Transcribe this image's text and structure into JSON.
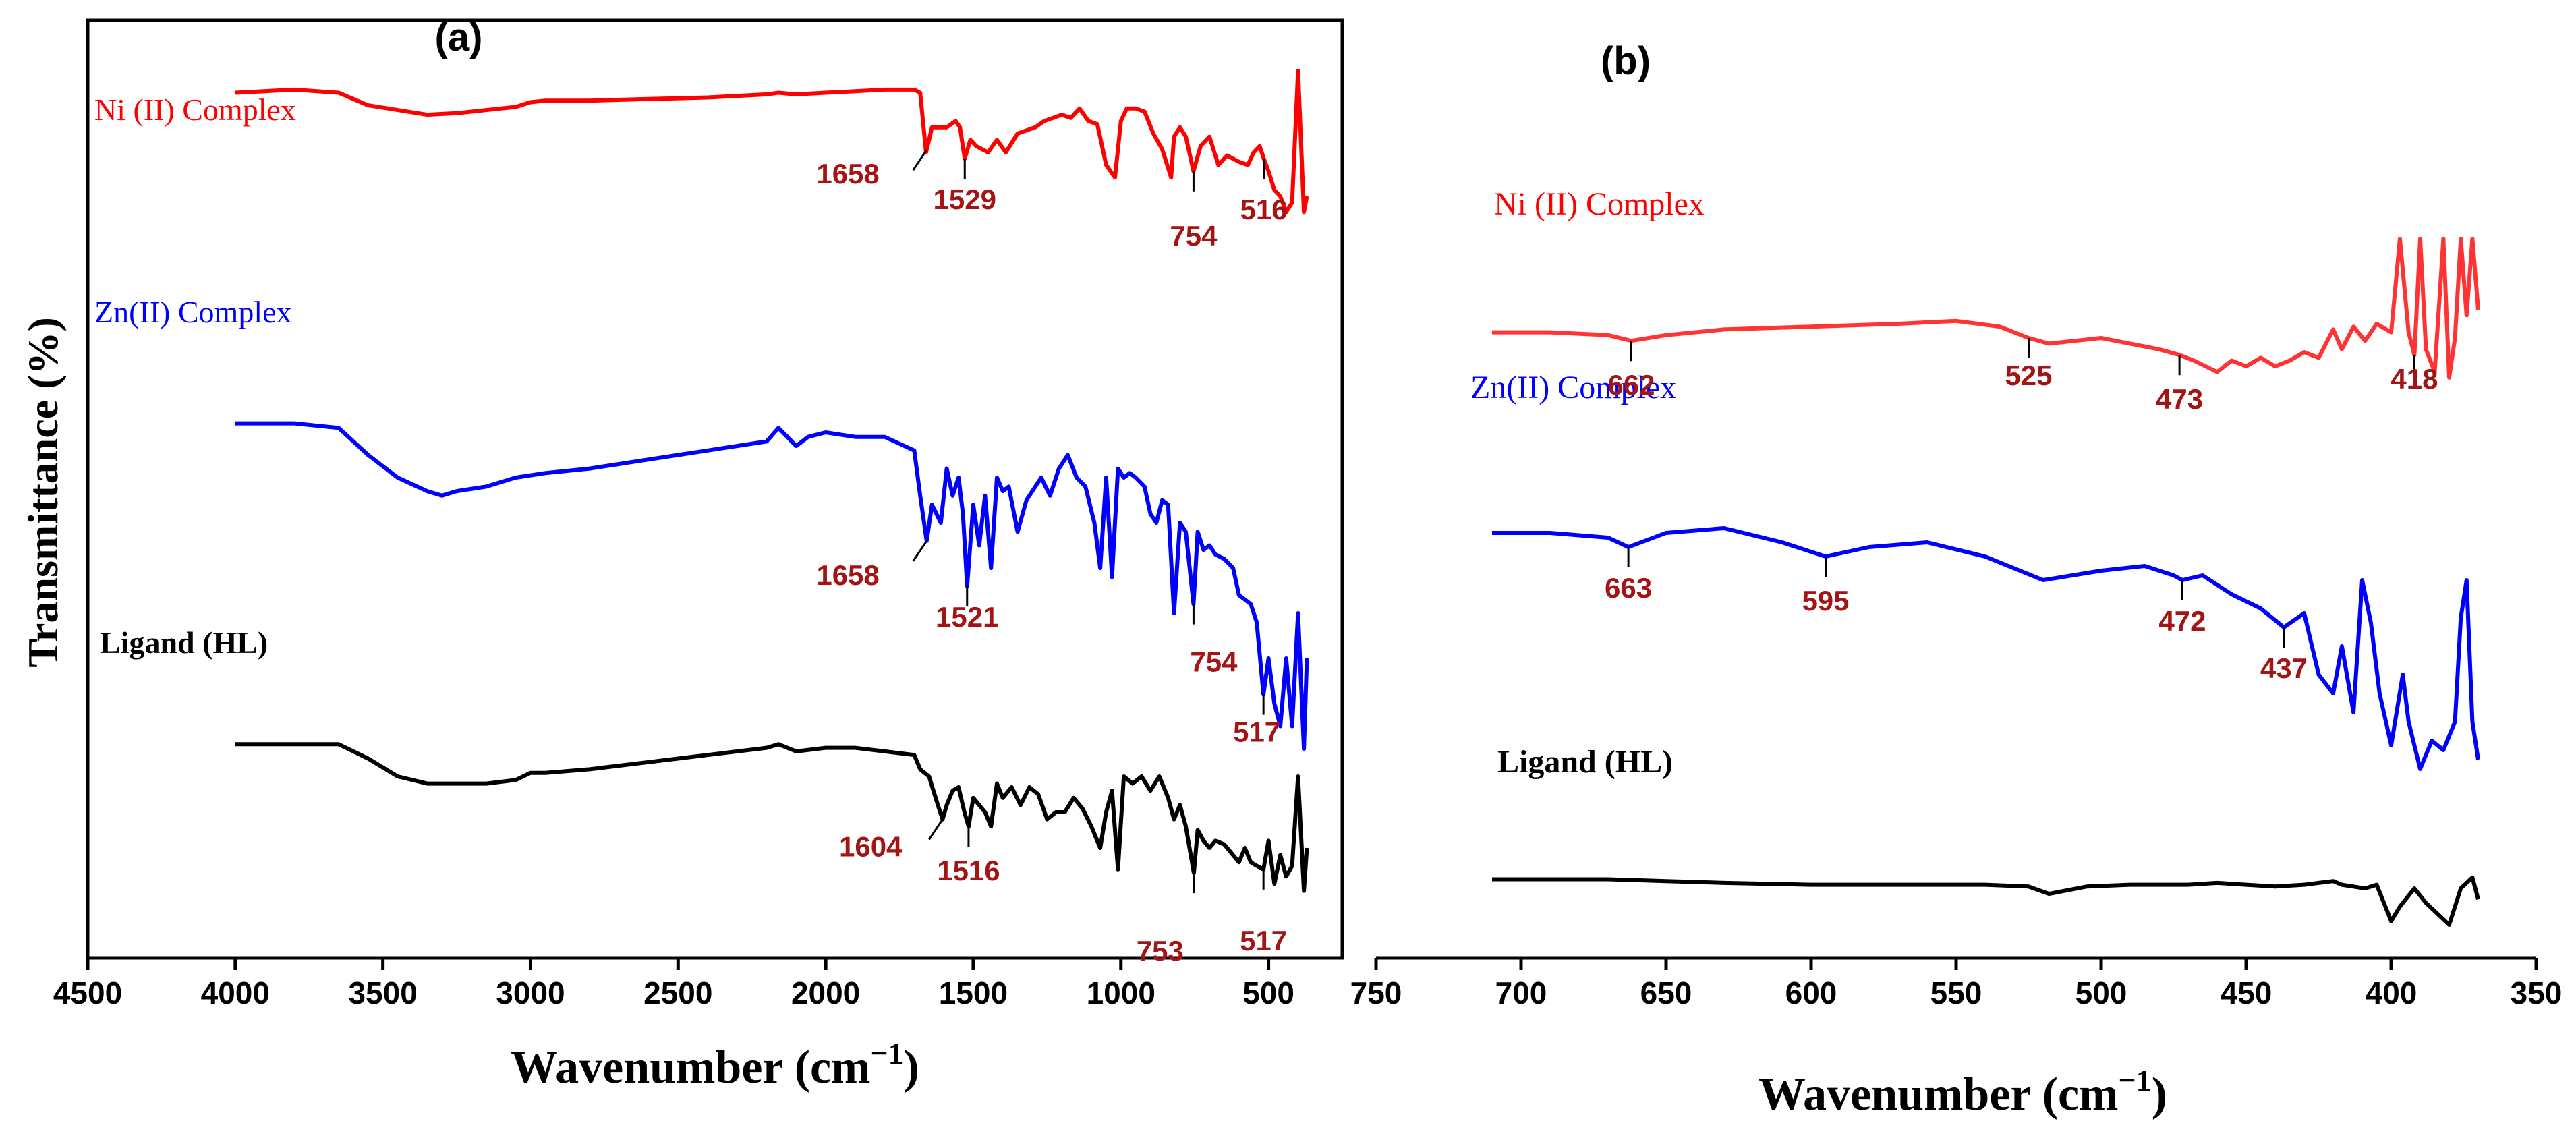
{
  "panels": [
    {
      "id": "a",
      "panel_label": "(a)",
      "xlabel_text": "Wavenumber (cm",
      "xlabel_sup": "−1",
      "xlabel_close": ")",
      "ylabel": "Transmittance (%)",
      "x_ticks": [
        4500,
        4000,
        3500,
        3000,
        2500,
        2000,
        1500,
        1000,
        500
      ],
      "xlim": [
        4500,
        250
      ],
      "series": [
        {
          "name": "Ni (II) Complex",
          "color": "#ff0000",
          "label_color": "#ff0000",
          "x": [
            4000,
            3800,
            3650,
            3550,
            3450,
            3350,
            3250,
            3150,
            3050,
            3000,
            2950,
            2800,
            2600,
            2400,
            2200,
            2160,
            2100,
            2000,
            1900,
            1800,
            1700,
            1680,
            1660,
            1640,
            1610,
            1590,
            1560,
            1545,
            1529,
            1510,
            1490,
            1470,
            1450,
            1420,
            1390,
            1350,
            1320,
            1290,
            1260,
            1230,
            1200,
            1170,
            1140,
            1110,
            1080,
            1050,
            1020,
            1000,
            980,
            950,
            920,
            890,
            860,
            830,
            820,
            800,
            780,
            754,
            730,
            700,
            670,
            640,
            600,
            570,
            550,
            530,
            516,
            500,
            480,
            460,
            440,
            420,
            400,
            380,
            370
          ],
          "y": [
            0.93,
            0.94,
            0.93,
            0.89,
            0.875,
            0.86,
            0.865,
            0.875,
            0.885,
            0.9,
            0.905,
            0.905,
            0.91,
            0.915,
            0.925,
            0.93,
            0.925,
            0.93,
            0.935,
            0.94,
            0.94,
            0.93,
            0.74,
            0.82,
            0.82,
            0.82,
            0.84,
            0.82,
            0.72,
            0.78,
            0.76,
            0.75,
            0.74,
            0.78,
            0.74,
            0.8,
            0.81,
            0.82,
            0.84,
            0.85,
            0.86,
            0.85,
            0.88,
            0.84,
            0.83,
            0.7,
            0.66,
            0.84,
            0.88,
            0.88,
            0.87,
            0.8,
            0.75,
            0.66,
            0.79,
            0.82,
            0.79,
            0.68,
            0.76,
            0.79,
            0.7,
            0.73,
            0.71,
            0.7,
            0.74,
            0.76,
            0.72,
            0.68,
            0.62,
            0.6,
            0.55,
            0.58,
            1.0,
            0.55,
            0.6
          ]
        },
        {
          "name": "Zn(II) Complex",
          "color": "#0000ff",
          "label_color": "#0000ff",
          "x": [
            4000,
            3800,
            3650,
            3550,
            3450,
            3350,
            3300,
            3250,
            3150,
            3050,
            2950,
            2800,
            2600,
            2400,
            2200,
            2160,
            2100,
            2060,
            2000,
            1900,
            1800,
            1700,
            1680,
            1658,
            1640,
            1610,
            1590,
            1570,
            1550,
            1535,
            1521,
            1500,
            1480,
            1460,
            1440,
            1420,
            1400,
            1380,
            1350,
            1320,
            1300,
            1270,
            1240,
            1210,
            1180,
            1150,
            1120,
            1090,
            1070,
            1050,
            1030,
            1010,
            990,
            970,
            950,
            920,
            900,
            880,
            860,
            840,
            820,
            800,
            780,
            754,
            740,
            720,
            700,
            680,
            650,
            620,
            600,
            580,
            560,
            540,
            517,
            500,
            480,
            460,
            440,
            420,
            400,
            380,
            370
          ],
          "y": [
            0.72,
            0.72,
            0.71,
            0.65,
            0.6,
            0.57,
            0.56,
            0.57,
            0.58,
            0.6,
            0.61,
            0.62,
            0.64,
            0.66,
            0.68,
            0.71,
            0.67,
            0.69,
            0.7,
            0.69,
            0.69,
            0.66,
            0.56,
            0.46,
            0.54,
            0.5,
            0.62,
            0.56,
            0.6,
            0.52,
            0.36,
            0.54,
            0.45,
            0.56,
            0.4,
            0.6,
            0.57,
            0.58,
            0.48,
            0.55,
            0.57,
            0.6,
            0.56,
            0.62,
            0.65,
            0.6,
            0.58,
            0.5,
            0.4,
            0.6,
            0.38,
            0.62,
            0.6,
            0.61,
            0.6,
            0.58,
            0.52,
            0.5,
            0.55,
            0.54,
            0.3,
            0.5,
            0.48,
            0.32,
            0.48,
            0.44,
            0.45,
            0.43,
            0.42,
            0.4,
            0.34,
            0.33,
            0.32,
            0.28,
            0.12,
            0.2,
            0.1,
            0.05,
            0.2,
            0.05,
            0.3,
            0.0,
            0.2
          ]
        },
        {
          "name": "Ligand (HL)",
          "color": "#000000",
          "label_color": "#000000",
          "x": [
            4000,
            3800,
            3650,
            3550,
            3450,
            3350,
            3250,
            3150,
            3050,
            3000,
            2950,
            2800,
            2600,
            2400,
            2200,
            2160,
            2100,
            2000,
            1900,
            1800,
            1700,
            1680,
            1650,
            1620,
            1604,
            1590,
            1570,
            1550,
            1530,
            1516,
            1500,
            1480,
            1460,
            1440,
            1420,
            1400,
            1370,
            1340,
            1310,
            1280,
            1250,
            1220,
            1190,
            1160,
            1130,
            1100,
            1070,
            1050,
            1030,
            1010,
            990,
            960,
            930,
            900,
            870,
            840,
            820,
            800,
            780,
            753,
            740,
            720,
            700,
            680,
            650,
            620,
            600,
            580,
            560,
            540,
            517,
            500,
            480,
            460,
            440,
            420,
            400,
            380,
            370
          ],
          "y": [
            0.39,
            0.39,
            0.39,
            0.35,
            0.3,
            0.28,
            0.28,
            0.28,
            0.29,
            0.31,
            0.31,
            0.32,
            0.34,
            0.36,
            0.38,
            0.39,
            0.37,
            0.38,
            0.38,
            0.37,
            0.36,
            0.32,
            0.3,
            0.22,
            0.18,
            0.22,
            0.26,
            0.27,
            0.2,
            0.16,
            0.24,
            0.22,
            0.2,
            0.16,
            0.28,
            0.24,
            0.27,
            0.22,
            0.27,
            0.25,
            0.18,
            0.2,
            0.2,
            0.24,
            0.21,
            0.16,
            0.1,
            0.2,
            0.26,
            0.04,
            0.3,
            0.28,
            0.3,
            0.26,
            0.3,
            0.24,
            0.18,
            0.22,
            0.16,
            0.03,
            0.15,
            0.12,
            0.1,
            0.12,
            0.11,
            0.08,
            0.06,
            0.1,
            0.06,
            0.05,
            0.04,
            0.12,
            0.0,
            0.08,
            0.02,
            0.05,
            0.3,
            -0.02,
            0.1
          ]
        }
      ],
      "annotations": [
        {
          "text": "1658",
          "series": "Ni (II) Complex",
          "x": 1658
        },
        {
          "text": "1529",
          "series": "Ni (II) Complex",
          "x": 1529
        },
        {
          "text": "754",
          "series": "Ni (II) Complex",
          "x": 754
        },
        {
          "text": "516",
          "series": "Ni (II) Complex",
          "x": 516
        },
        {
          "text": "1658",
          "series": "Zn(II) Complex",
          "x": 1658
        },
        {
          "text": "1521",
          "series": "Zn(II) Complex",
          "x": 1521
        },
        {
          "text": "754",
          "series": "Zn(II) Complex",
          "x": 754
        },
        {
          "text": "517",
          "series": "Zn(II) Complex",
          "x": 517
        },
        {
          "text": "1604",
          "series": "Ligand (HL)",
          "x": 1604
        },
        {
          "text": "1516",
          "series": "Ligand (HL)",
          "x": 1516
        },
        {
          "text": "753",
          "series": "Ligand (HL)",
          "x": 753
        },
        {
          "text": "517",
          "series": "Ligand (HL)",
          "x": 517
        }
      ]
    },
    {
      "id": "b",
      "panel_label": "(b)",
      "xlabel_text": "Wavenumber (cm",
      "xlabel_sup": "−1",
      "xlabel_close": ")",
      "ylabel": "",
      "x_ticks": [
        750,
        700,
        650,
        600,
        550,
        500,
        450,
        400,
        350
      ],
      "xlim": [
        750,
        350
      ],
      "series": [
        {
          "name": "Ni (II) Complex",
          "color": "#ff3333",
          "label_color": "#ff0000",
          "x": [
            710,
            690,
            670,
            662,
            650,
            630,
            600,
            570,
            550,
            535,
            525,
            518,
            500,
            490,
            480,
            473,
            468,
            460,
            455,
            450,
            445,
            440,
            435,
            430,
            425,
            420,
            417,
            413,
            409,
            405,
            400,
            397,
            394,
            392,
            390,
            388,
            385,
            382,
            380,
            378,
            376,
            374,
            372,
            370
          ],
          "y": [
            0.72,
            0.72,
            0.71,
            0.69,
            0.71,
            0.73,
            0.74,
            0.75,
            0.76,
            0.74,
            0.7,
            0.68,
            0.7,
            0.68,
            0.66,
            0.64,
            0.62,
            0.58,
            0.62,
            0.6,
            0.63,
            0.6,
            0.62,
            0.65,
            0.63,
            0.73,
            0.66,
            0.74,
            0.69,
            0.75,
            0.72,
            1.05,
            0.72,
            0.64,
            1.05,
            0.66,
            0.58,
            1.05,
            0.56,
            0.7,
            1.05,
            0.78,
            1.05,
            0.8
          ]
        },
        {
          "name": "Zn(II) Complex",
          "color": "#0000ff",
          "label_color": "#0000ff",
          "x": [
            710,
            690,
            670,
            663,
            650,
            630,
            610,
            595,
            580,
            560,
            540,
            520,
            500,
            485,
            475,
            472,
            465,
            455,
            445,
            437,
            430,
            425,
            420,
            417,
            413,
            410,
            407,
            404,
            400,
            396,
            394,
            390,
            386,
            382,
            378,
            376,
            374,
            372,
            370
          ],
          "y": [
            0.5,
            0.5,
            0.49,
            0.47,
            0.5,
            0.51,
            0.48,
            0.45,
            0.47,
            0.48,
            0.45,
            0.4,
            0.42,
            0.43,
            0.41,
            0.4,
            0.41,
            0.37,
            0.34,
            0.3,
            0.33,
            0.2,
            0.16,
            0.26,
            0.12,
            0.4,
            0.31,
            0.16,
            0.05,
            0.2,
            0.1,
            0.0,
            0.06,
            0.04,
            0.1,
            0.32,
            0.4,
            0.1,
            0.02
          ]
        },
        {
          "name": "Ligand (HL)",
          "color": "#000000",
          "label_color": "#000000",
          "x": [
            710,
            690,
            670,
            650,
            630,
            600,
            580,
            560,
            540,
            525,
            518,
            505,
            490,
            470,
            460,
            450,
            440,
            430,
            425,
            420,
            417,
            413,
            409,
            405,
            400,
            397,
            392,
            388,
            384,
            380,
            376,
            372,
            370
          ],
          "y": [
            -0.05,
            -0.05,
            -0.05,
            -0.06,
            -0.07,
            -0.08,
            -0.08,
            -0.08,
            -0.08,
            -0.09,
            -0.13,
            -0.09,
            -0.08,
            -0.08,
            -0.07,
            -0.08,
            -0.09,
            -0.08,
            -0.07,
            -0.06,
            -0.08,
            -0.09,
            -0.1,
            -0.08,
            -0.28,
            -0.2,
            -0.1,
            -0.18,
            -0.24,
            -0.3,
            -0.1,
            -0.04,
            -0.16
          ]
        }
      ],
      "annotations": [
        {
          "text": "662",
          "series": "Ni (II) Complex",
          "x": 662
        },
        {
          "text": "525",
          "series": "Ni (II) Complex",
          "x": 525
        },
        {
          "text": "473",
          "series": "Ni (II) Complex",
          "x": 473
        },
        {
          "text": "418",
          "series": "Ni (II) Complex",
          "x": 392
        },
        {
          "text": "663",
          "series": "Zn(II) Complex",
          "x": 663
        },
        {
          "text": "595",
          "series": "Zn(II) Complex",
          "x": 595
        },
        {
          "text": "472",
          "series": "Zn(II) Complex",
          "x": 472
        },
        {
          "text": "437",
          "series": "Zn(II) Complex",
          "x": 437
        }
      ]
    }
  ],
  "annotation_color": "#a31515",
  "chart_data": [
    {
      "type": "line",
      "panel": "(a)",
      "xlabel": "Wavenumber (cm−1)",
      "ylabel": "Transmittance (%)",
      "xlim": [
        4500,
        250
      ],
      "x_ticks": [
        4500,
        4000,
        3500,
        3000,
        2500,
        2000,
        1500,
        1000,
        500
      ],
      "x_reversed": true,
      "y_ticks_shown": false,
      "grid": false,
      "series": [
        "Ni (II) Complex",
        "Zn(II) Complex",
        "Ligand (HL)"
      ],
      "peak_labels": {
        "Ni (II) Complex": [
          1658,
          1529,
          754,
          516
        ],
        "Zn(II) Complex": [
          1658,
          1521,
          754,
          517
        ],
        "Ligand (HL)": [
          1604,
          1516,
          753,
          517
        ]
      }
    },
    {
      "type": "line",
      "panel": "(b)",
      "xlabel": "Wavenumber (cm−1)",
      "xlim": [
        750,
        350
      ],
      "x_ticks": [
        750,
        700,
        650,
        600,
        550,
        500,
        450,
        400,
        350
      ],
      "x_reversed": true,
      "y_ticks_shown": false,
      "grid": false,
      "series": [
        "Ni (II) Complex",
        "Zn(II) Complex",
        "Ligand (HL)"
      ],
      "peak_labels": {
        "Ni (II) Complex": [
          662,
          525,
          473,
          418
        ],
        "Zn(II) Complex": [
          663,
          595,
          472,
          437
        ]
      }
    }
  ]
}
